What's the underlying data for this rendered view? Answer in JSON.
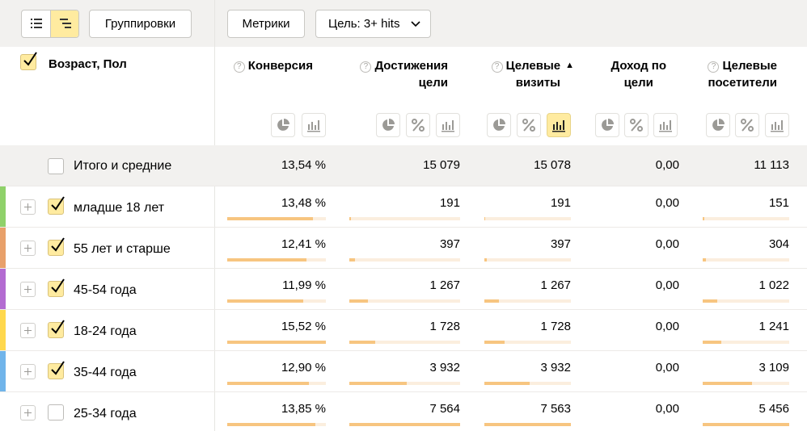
{
  "toolbar": {
    "view_list_icon": "list-view-icon",
    "view_tree_icon": "tree-view-icon",
    "groupings_label": "Группировки",
    "metrics_label": "Метрики",
    "goal_label": "Цель: 3+ hits"
  },
  "header": {
    "dimension_title": "Возраст, Пол",
    "columns": [
      {
        "line1": "Конверсия",
        "line2": "",
        "has_help": true
      },
      {
        "line1": "Достижения",
        "line2": "цели",
        "has_help": true
      },
      {
        "line1": "Целевые",
        "line2": "визиты",
        "has_help": true,
        "sorted": "▲"
      },
      {
        "line1": "Доход по",
        "line2": "цели",
        "has_help": false
      },
      {
        "line1": "Целевые",
        "line2": "посетители",
        "has_help": true
      }
    ],
    "help_glyph": "?"
  },
  "totals": {
    "label": "Итого и средние",
    "values": [
      "13,54 %",
      "15 079",
      "15 078",
      "0,00",
      "11 113"
    ]
  },
  "rows": [
    {
      "label": "младше 18 лет",
      "checked": true,
      "color": "#8fd16a",
      "values": [
        "13,48 %",
        "191",
        "191",
        "0,00",
        "151"
      ],
      "shares": [
        0.87,
        0.013,
        0.013,
        0,
        0.014
      ]
    },
    {
      "label": "55 лет и старше",
      "checked": true,
      "color": "#e8a06a",
      "values": [
        "12,41 %",
        "397",
        "397",
        "0,00",
        "304"
      ],
      "shares": [
        0.8,
        0.05,
        0.03,
        0,
        0.04
      ]
    },
    {
      "label": "45-54 года",
      "checked": true,
      "color": "#b36bd1",
      "values": [
        "11,99 %",
        "1 267",
        "1 267",
        "0,00",
        "1 022"
      ],
      "shares": [
        0.77,
        0.17,
        0.17,
        0,
        0.17
      ]
    },
    {
      "label": "18-24 года",
      "checked": true,
      "color": "#ffd84d",
      "values": [
        "15,52 %",
        "1 728",
        "1 728",
        "0,00",
        "1 241"
      ],
      "shares": [
        1.0,
        0.23,
        0.23,
        0,
        0.21
      ]
    },
    {
      "label": "35-44 года",
      "checked": true,
      "color": "#70b4ea",
      "values": [
        "12,90 %",
        "3 932",
        "3 932",
        "0,00",
        "3 109"
      ],
      "shares": [
        0.83,
        0.52,
        0.52,
        0,
        0.57
      ]
    },
    {
      "label": "25-34 года",
      "checked": false,
      "color": "",
      "values": [
        "13,85 %",
        "7 564",
        "7 563",
        "0,00",
        "5 456"
      ],
      "shares": [
        0.89,
        1.0,
        1.0,
        0,
        1.0
      ]
    }
  ]
}
